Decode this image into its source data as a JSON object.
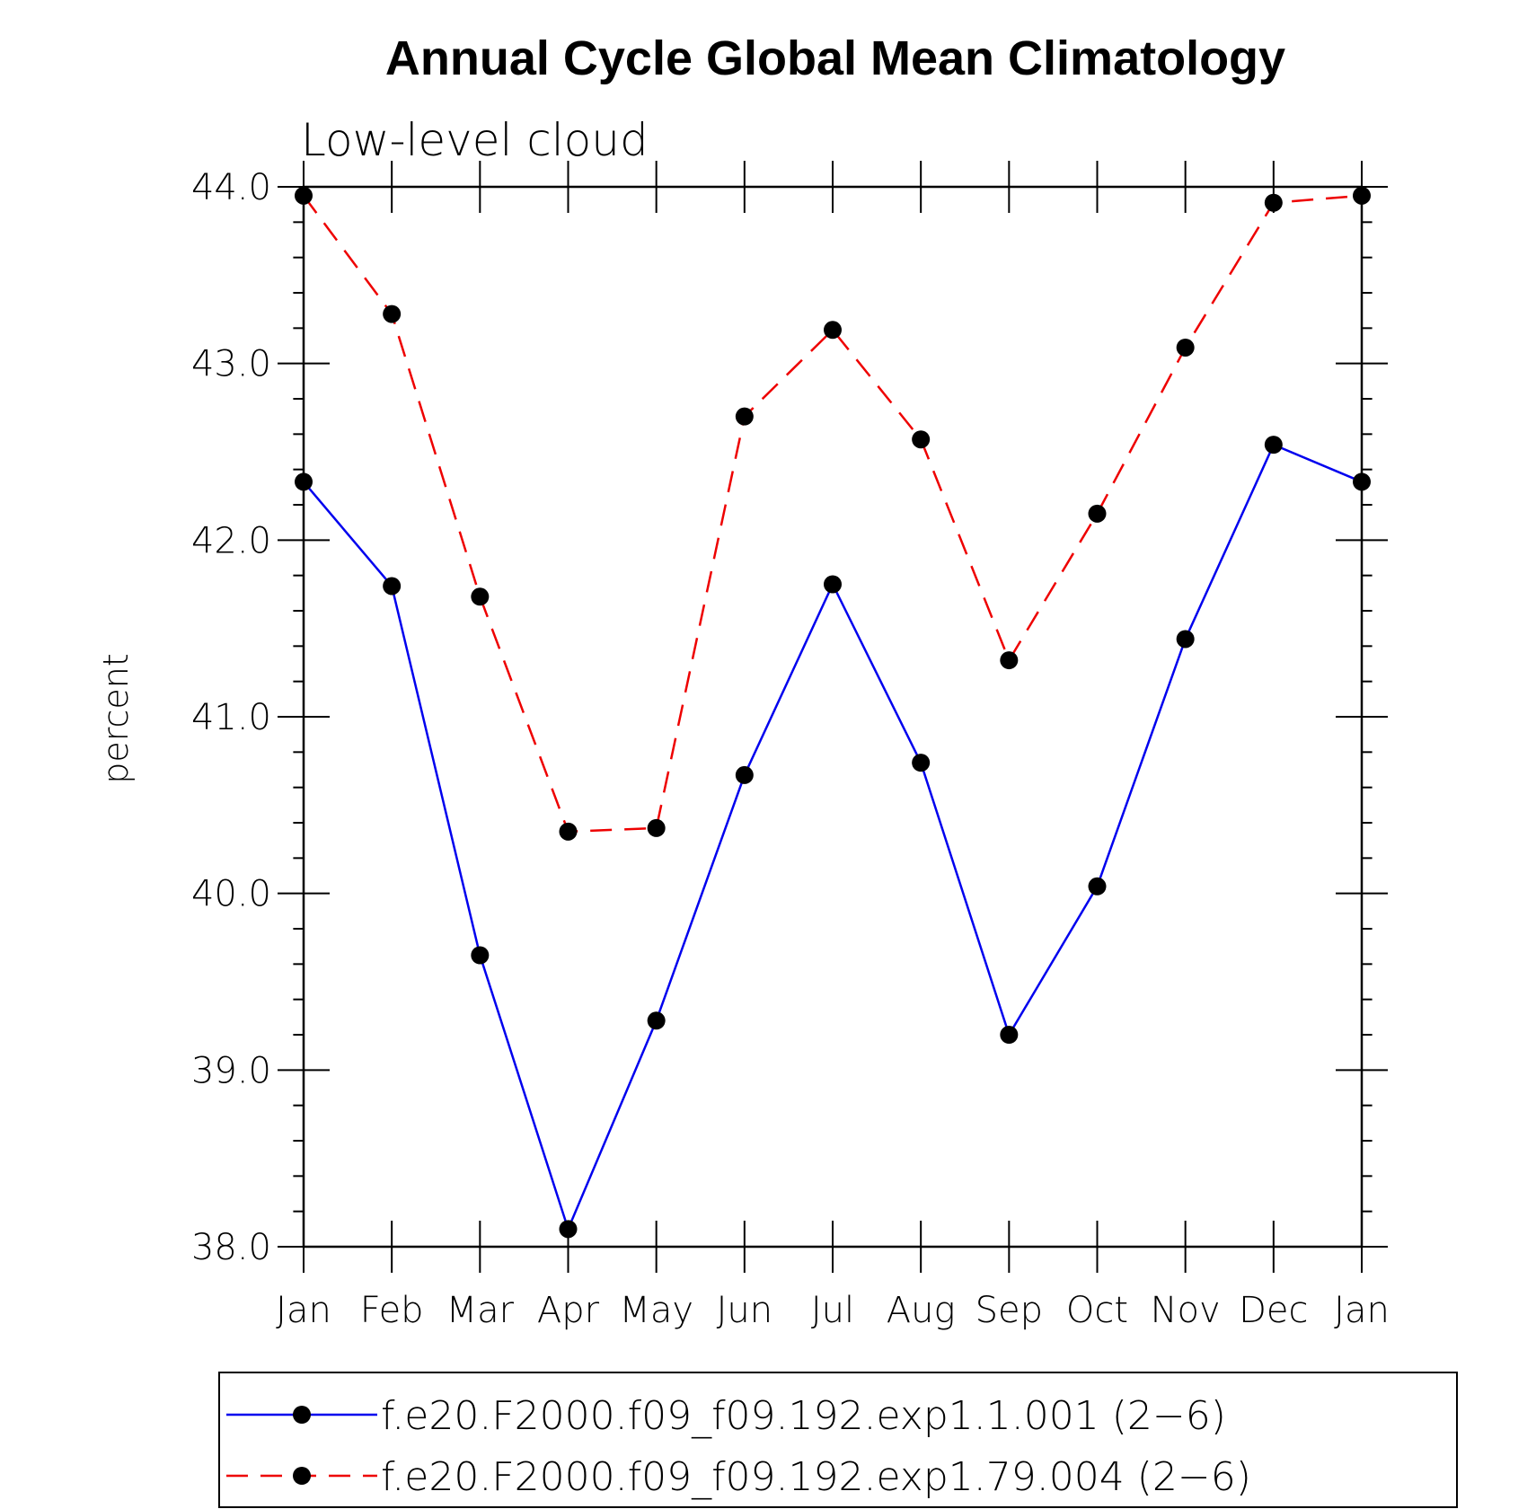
{
  "chart_data": {
    "type": "line",
    "title": "Annual Cycle Global Mean Climatology",
    "subtitle": "Low-level cloud",
    "xlabel": "",
    "ylabel": "percent",
    "categories": [
      "Jan",
      "Feb",
      "Mar",
      "Apr",
      "May",
      "Jun",
      "Jul",
      "Aug",
      "Sep",
      "Oct",
      "Nov",
      "Dec",
      "Jan"
    ],
    "ylim": [
      38.0,
      44.0
    ],
    "yticks": [
      "38.0",
      "39.0",
      "40.0",
      "41.0",
      "42.0",
      "43.0",
      "44.0"
    ],
    "grid": false,
    "legend_position": "bottom",
    "series": [
      {
        "name": "f.e20.F2000.f09_f09.192.exp1.1.001 (2−6)",
        "color": "#0000ee",
        "line_style": "solid",
        "marker": "filled-circle",
        "values": [
          42.33,
          41.74,
          39.65,
          38.1,
          39.28,
          40.67,
          41.75,
          40.74,
          39.2,
          40.04,
          41.44,
          42.54,
          42.33
        ]
      },
      {
        "name": "f.e20.F2000.f09_f09.192.exp1.79.004 (2−6)",
        "color": "#ee0000",
        "line_style": "dashed",
        "marker": "filled-circle",
        "values": [
          43.95,
          43.28,
          41.68,
          40.35,
          40.37,
          42.7,
          43.19,
          42.57,
          41.32,
          42.15,
          43.09,
          43.91,
          43.95
        ]
      }
    ]
  }
}
